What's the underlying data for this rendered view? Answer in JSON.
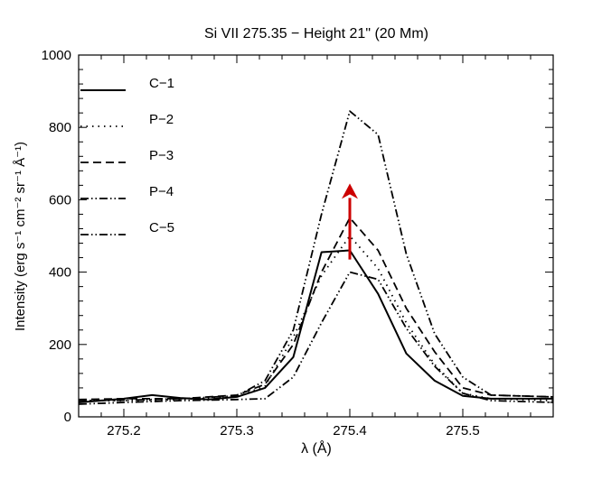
{
  "chart_data": {
    "type": "line",
    "title": "Si VII 275.35 − Height 21\" (20 Mm)",
    "xlabel": "λ (Å)",
    "ylabel": "Intensity (erg s⁻¹ cm⁻² sr⁻¹ Å⁻¹)",
    "xlim": [
      275.16,
      275.58
    ],
    "ylim": [
      0,
      1000
    ],
    "xticks": [
      275.2,
      275.3,
      275.4,
      275.5
    ],
    "xtick_labels": [
      "275.2",
      "275.3",
      "275.4",
      "275.5"
    ],
    "yticks": [
      0,
      200,
      400,
      600,
      800,
      1000
    ],
    "ytick_labels": [
      "0",
      "200",
      "400",
      "600",
      "800",
      "1000"
    ],
    "legend_position": "top-left",
    "series": [
      {
        "name": "C−1",
        "style": "solid",
        "x": [
          275.16,
          275.18,
          275.2,
          275.225,
          275.25,
          275.275,
          275.3,
          275.325,
          275.35,
          275.375,
          275.4,
          275.425,
          275.45,
          275.475,
          275.5,
          275.525,
          275.55,
          275.58
        ],
        "y": [
          40,
          45,
          50,
          60,
          52,
          48,
          55,
          80,
          165,
          455,
          460,
          340,
          175,
          100,
          58,
          50,
          50,
          50
        ]
      },
      {
        "name": "P−2",
        "style": "dotted",
        "x": [
          275.16,
          275.2,
          275.25,
          275.3,
          275.325,
          275.35,
          275.375,
          275.4,
          275.425,
          275.45,
          275.475,
          275.5,
          275.525,
          275.58
        ],
        "y": [
          45,
          45,
          48,
          55,
          85,
          220,
          390,
          500,
          410,
          260,
          145,
          65,
          50,
          45
        ]
      },
      {
        "name": "P−3",
        "style": "dashed",
        "x": [
          275.16,
          275.2,
          275.25,
          275.3,
          275.325,
          275.35,
          275.375,
          275.4,
          275.425,
          275.45,
          275.475,
          275.5,
          275.525,
          275.58
        ],
        "y": [
          48,
          50,
          50,
          60,
          90,
          200,
          400,
          550,
          460,
          300,
          180,
          80,
          60,
          55
        ]
      },
      {
        "name": "P−4",
        "style": "dash-dot-dot",
        "x": [
          275.16,
          275.2,
          275.25,
          275.3,
          275.325,
          275.35,
          275.375,
          275.4,
          275.425,
          275.45,
          275.475,
          275.5,
          275.525,
          275.58
        ],
        "y": [
          45,
          46,
          50,
          58,
          100,
          240,
          560,
          845,
          780,
          450,
          230,
          110,
          60,
          55
        ]
      },
      {
        "name": "C−5",
        "style": "dash-dot-dot",
        "x": [
          275.16,
          275.2,
          275.25,
          275.3,
          275.325,
          275.35,
          275.375,
          275.4,
          275.425,
          275.45,
          275.475,
          275.5,
          275.525,
          275.58
        ],
        "y": [
          35,
          40,
          45,
          48,
          50,
          110,
          260,
          400,
          380,
          245,
          140,
          65,
          45,
          40
        ]
      }
    ],
    "arrow": {
      "x": 275.4,
      "y_start": 435,
      "y_end": 645,
      "color": "#cc0000"
    }
  }
}
